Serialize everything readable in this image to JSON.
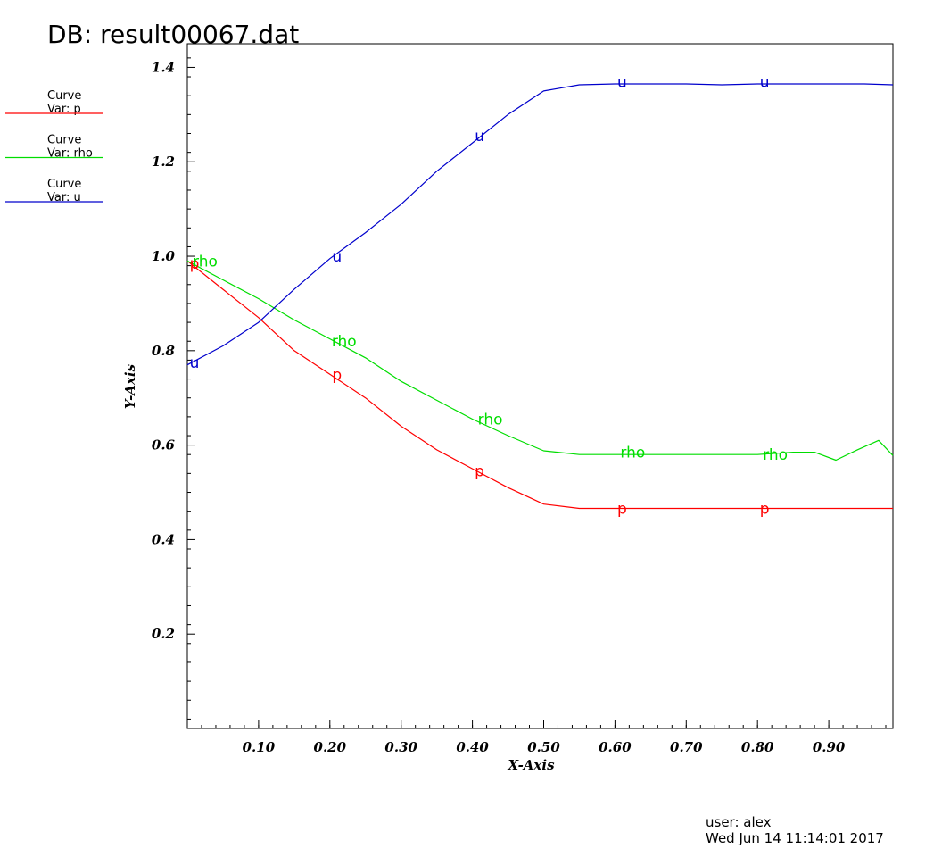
{
  "header": {
    "title": "DB: result00067.dat"
  },
  "footer": {
    "user": "user: alex",
    "date": "Wed Jun 14 11:14:01 2017"
  },
  "legend": [
    {
      "title": "Curve",
      "var": "Var: p",
      "color": "#ff0000"
    },
    {
      "title": "Curve",
      "var": "Var: rho",
      "color": "#00dd00"
    },
    {
      "title": "Curve",
      "var": "Var: u",
      "color": "#0000cc"
    }
  ],
  "chart_data": {
    "type": "line",
    "title": "",
    "xlabel": "X-Axis",
    "ylabel": "Y-Axis",
    "xlim": [
      0.0,
      0.99
    ],
    "ylim": [
      0.0,
      1.45
    ],
    "xticks": [
      0.1,
      0.2,
      0.3,
      0.4,
      0.5,
      0.6,
      0.7,
      0.8,
      0.9
    ],
    "xtick_labels": [
      "0.10",
      "0.20",
      "0.30",
      "0.40",
      "0.50",
      "0.60",
      "0.70",
      "0.80",
      "0.90"
    ],
    "yticks": [
      0.2,
      0.4,
      0.6,
      0.8,
      1.0,
      1.2,
      1.4
    ],
    "ytick_labels": [
      "0.2",
      "0.4",
      "0.6",
      "0.8",
      "1.0",
      "1.2",
      "1.4"
    ],
    "grid": false,
    "legend_position": "top-left",
    "series": [
      {
        "name": "p",
        "color": "#ff0000",
        "x": [
          0.0,
          0.05,
          0.1,
          0.15,
          0.2,
          0.25,
          0.3,
          0.35,
          0.4,
          0.45,
          0.5,
          0.55,
          0.6,
          0.65,
          0.7,
          0.75,
          0.8,
          0.85,
          0.9,
          0.95,
          0.99
        ],
        "y": [
          0.99,
          0.93,
          0.87,
          0.8,
          0.75,
          0.7,
          0.64,
          0.59,
          0.55,
          0.51,
          0.475,
          0.466,
          0.466,
          0.466,
          0.466,
          0.466,
          0.466,
          0.466,
          0.466,
          0.466,
          0.466
        ],
        "label_points": [
          [
            0.01,
            0.985
          ],
          [
            0.21,
            0.75
          ],
          [
            0.41,
            0.545
          ],
          [
            0.61,
            0.466
          ],
          [
            0.81,
            0.466
          ]
        ]
      },
      {
        "name": "rho",
        "color": "#00dd00",
        "x": [
          0.0,
          0.05,
          0.1,
          0.15,
          0.2,
          0.25,
          0.3,
          0.35,
          0.4,
          0.45,
          0.5,
          0.55,
          0.6,
          0.65,
          0.7,
          0.75,
          0.8,
          0.85,
          0.88,
          0.91,
          0.94,
          0.97,
          0.99
        ],
        "y": [
          0.99,
          0.95,
          0.91,
          0.865,
          0.825,
          0.785,
          0.735,
          0.695,
          0.655,
          0.62,
          0.588,
          0.58,
          0.58,
          0.58,
          0.58,
          0.58,
          0.58,
          0.585,
          0.585,
          0.568,
          0.59,
          0.61,
          0.578
        ],
        "label_points": [
          [
            0.025,
            0.99
          ],
          [
            0.22,
            0.82
          ],
          [
            0.425,
            0.655
          ],
          [
            0.625,
            0.585
          ],
          [
            0.825,
            0.58
          ]
        ]
      },
      {
        "name": "u",
        "color": "#0000cc",
        "x": [
          0.0,
          0.05,
          0.1,
          0.15,
          0.2,
          0.25,
          0.3,
          0.35,
          0.4,
          0.45,
          0.5,
          0.55,
          0.6,
          0.65,
          0.7,
          0.75,
          0.8,
          0.85,
          0.9,
          0.95,
          0.99
        ],
        "y": [
          0.77,
          0.81,
          0.86,
          0.93,
          0.995,
          1.05,
          1.11,
          1.18,
          1.24,
          1.3,
          1.35,
          1.363,
          1.365,
          1.365,
          1.365,
          1.363,
          1.365,
          1.365,
          1.365,
          1.365,
          1.363
        ],
        "label_points": [
          [
            0.01,
            0.775
          ],
          [
            0.21,
            1.0
          ],
          [
            0.41,
            1.255
          ],
          [
            0.61,
            1.37
          ],
          [
            0.81,
            1.37
          ]
        ]
      }
    ]
  }
}
